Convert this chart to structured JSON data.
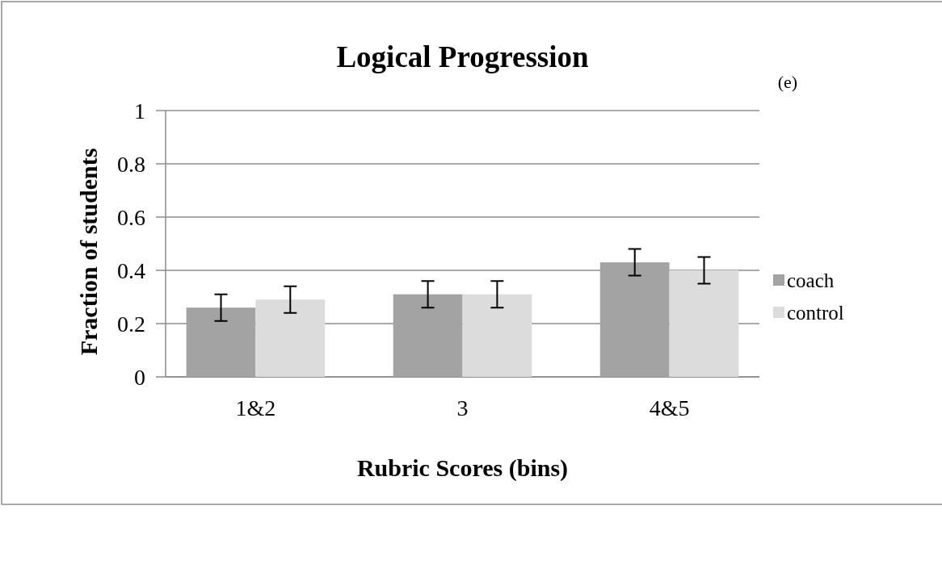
{
  "chart_data": {
    "type": "bar",
    "title": "Logical Progression",
    "xlabel": "Rubric Scores (bins)",
    "ylabel": "Fraction of students",
    "annotations": [
      "(e)"
    ],
    "categories": [
      "1&2",
      "3",
      "4&5"
    ],
    "series": [
      {
        "name": "coach",
        "color": "#a3a3a3",
        "values": [
          0.26,
          0.31,
          0.43
        ],
        "errors": [
          0.05,
          0.05,
          0.05
        ]
      },
      {
        "name": "control",
        "color": "#dcdcdc",
        "values": [
          0.29,
          0.31,
          0.4
        ],
        "errors": [
          0.05,
          0.05,
          0.05
        ]
      }
    ],
    "ylim": [
      0,
      1
    ],
    "yticks": [
      0,
      0.2,
      0.4,
      0.6,
      0.8,
      1
    ],
    "grid": "y",
    "legend": "right"
  }
}
